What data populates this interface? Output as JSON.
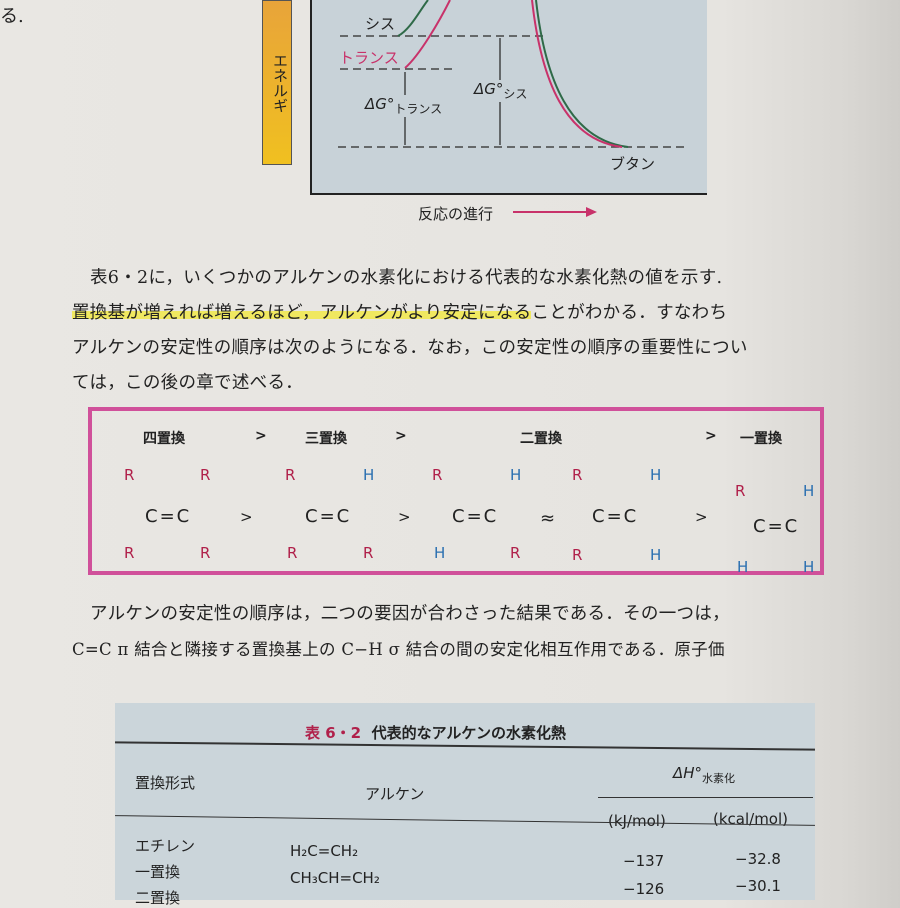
{
  "margin_fragment": "る.",
  "diagram": {
    "y_axis_label": "エネルギ",
    "cis": "シス",
    "trans": "トランス",
    "dg_trans": "ΔG°",
    "dg_trans_sub": "トランス",
    "dg_cis": "ΔG°",
    "dg_cis_sub": "シス",
    "butane": "ブタン",
    "x_axis_label": "反応の進行",
    "colors": {
      "cis": "#2f6a48",
      "trans": "#c8326a"
    }
  },
  "paragraph1": {
    "line1": "表6・2に，いくつかのアルケンの水素化における代表的な水素化熱の値を示す.",
    "line2_highlighted": "置換基が増えれば増えるほど，アルケンがより安定になる",
    "line2_rest": "ことがわかる．すなわち",
    "line3": "アルケンの安定性の順序は次のようになる．なお，この安定性の順序の重要性につい",
    "line4": "ては，この後の章で述べる．"
  },
  "stability_box": {
    "headers": [
      "四置換",
      ">",
      "三置換",
      ">",
      "二置換",
      ">",
      "一置換"
    ],
    "operators": [
      ">",
      ">",
      "≈",
      ">"
    ],
    "molecules": [
      {
        "tl": "R",
        "tr": "R",
        "bl": "R",
        "br": "R",
        "core": "C=C"
      },
      {
        "tl": "R",
        "tr": "H",
        "bl": "R",
        "br": "R",
        "core": "C=C"
      },
      {
        "tl": "R",
        "tr": "H",
        "bl": "H",
        "br": "R",
        "core": "C=C"
      },
      {
        "tl": "R",
        "tr": "H",
        "bl": "R",
        "br": "H",
        "core": "C=C"
      },
      {
        "tl": "R",
        "tr": "H",
        "bl": "H",
        "br": "H",
        "core": "C=C"
      }
    ],
    "border_color": "#d0509a"
  },
  "paragraph2": {
    "line1": "アルケンの安定性の順序は，二つの要因が合わさった結果である．その一つは，",
    "line2": "C=C π 結合と隣接する置換基上の C−H σ 結合の間の安定化相互作用である．原子価"
  },
  "table": {
    "title_num": "表 6・2",
    "title": "代表的なアルケンの水素化熱",
    "col_type": "置換形式",
    "col_alkene": "アルケン",
    "col_dh": "ΔH°",
    "col_dh_sub": "水素化",
    "unit_kj": "(kJ/mol)",
    "unit_kcal": "(kcal/mol)",
    "rows": [
      {
        "type": "エチレン",
        "alkene": "H₂C=CH₂",
        "kj": "−137",
        "kcal": "−32.8"
      },
      {
        "type": "一置換",
        "alkene": "CH₃CH=CH₂",
        "kj": "−126",
        "kcal": "−30.1"
      },
      {
        "type": "二置換",
        "alkene": "",
        "kj": "",
        "kcal": ""
      }
    ]
  }
}
